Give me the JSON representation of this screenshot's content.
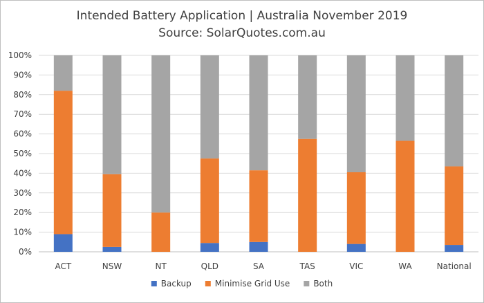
{
  "chart_data": {
    "type": "bar",
    "stacked": true,
    "title": "Intended Battery Application | Australia November 2019",
    "subtitle": "Source: SolarQuotes.com.au",
    "xlabel": "",
    "ylabel": "",
    "ylim": [
      0,
      1
    ],
    "y_ticks": [
      "0%",
      "10%",
      "20%",
      "30%",
      "40%",
      "50%",
      "60%",
      "70%",
      "80%",
      "90%",
      "100%"
    ],
    "grid": true,
    "legend_position": "bottom",
    "categories": [
      "ACT",
      "NSW",
      "NT",
      "QLD",
      "SA",
      "TAS",
      "VIC",
      "WA",
      "National"
    ],
    "series": [
      {
        "name": "Backup",
        "color": "#4472c4",
        "values": [
          0.09,
          0.025,
          0.0,
          0.045,
          0.05,
          0.0,
          0.04,
          0.0,
          0.035
        ]
      },
      {
        "name": "Minimise Grid Use",
        "color": "#ed7d31",
        "values": [
          0.73,
          0.37,
          0.2,
          0.43,
          0.365,
          0.575,
          0.365,
          0.565,
          0.4
        ]
      },
      {
        "name": "Both",
        "color": "#a5a5a5",
        "values": [
          0.18,
          0.605,
          0.8,
          0.525,
          0.585,
          0.425,
          0.595,
          0.435,
          0.565
        ]
      }
    ]
  }
}
